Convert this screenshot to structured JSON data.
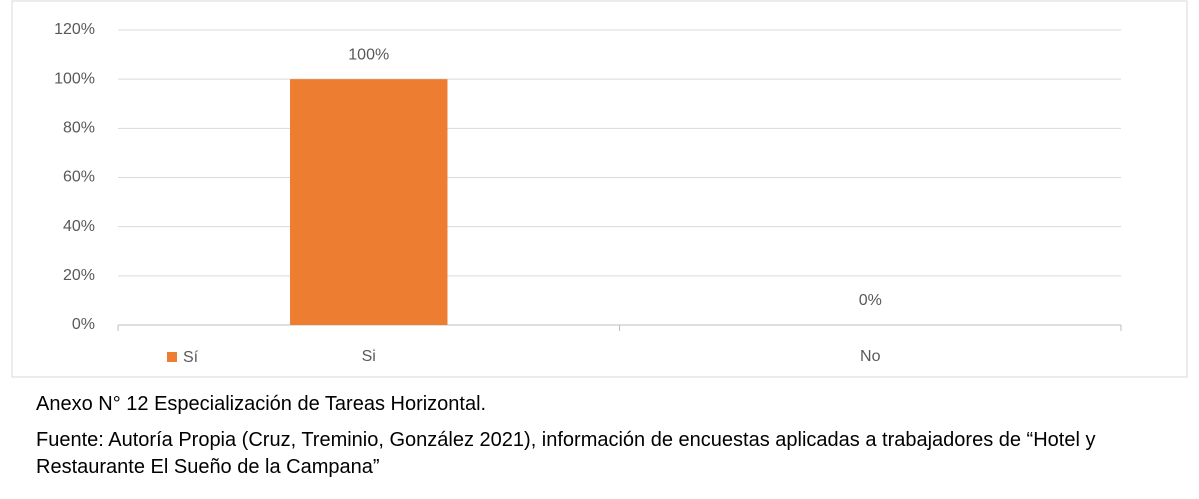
{
  "chart_data": {
    "type": "bar",
    "categories": [
      "Si",
      "No"
    ],
    "series": [
      {
        "name": "Sí",
        "color": "#ed7d31",
        "values": [
          100,
          0
        ],
        "value_labels": [
          "100%",
          "0%"
        ]
      }
    ],
    "ylim": [
      0,
      120
    ],
    "yticks": [
      {
        "value": 0,
        "label": "0%"
      },
      {
        "value": 20,
        "label": "20%"
      },
      {
        "value": 40,
        "label": "40%"
      },
      {
        "value": 60,
        "label": "60%"
      },
      {
        "value": 80,
        "label": "80%"
      },
      {
        "value": 100,
        "label": "100%"
      },
      {
        "value": 120,
        "label": "120%"
      }
    ],
    "grid": true
  },
  "caption": {
    "title": "Anexo N° 12 Especialización de Tareas Horizontal.",
    "source": "Fuente: Autoría Propia (Cruz, Treminio, González 2021), información de encuestas aplicadas a trabajadores de “Hotel y Restaurante El Sueño de la Campana”"
  }
}
